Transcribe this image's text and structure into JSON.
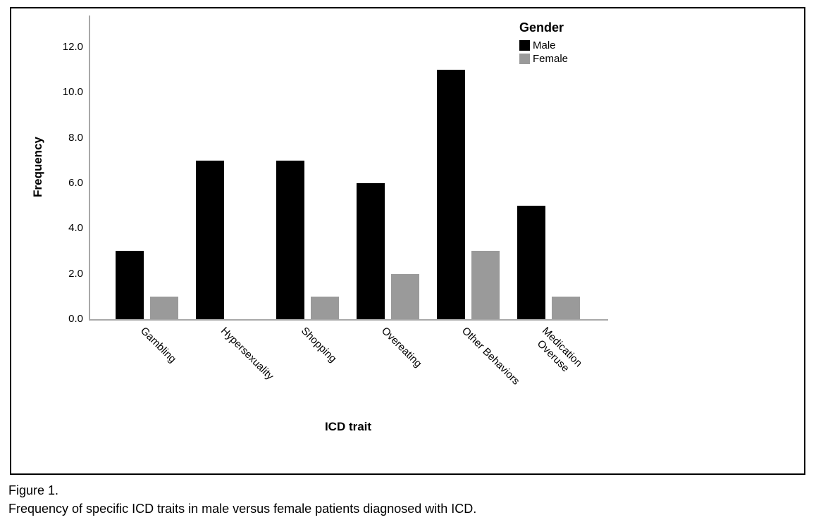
{
  "figure": {
    "caption_line1": "Figure 1.",
    "caption_line2": "Frequency of specific ICD traits in male versus female patients diagnosed with ICD."
  },
  "chart_data": {
    "type": "bar",
    "title": "",
    "categories": [
      "Gambling",
      "Hypersexuality",
      "Shopping",
      "Overeating",
      "Other Behaviors",
      "Medication\nOveruse"
    ],
    "series": [
      {
        "name": "Male",
        "color": "#000000",
        "values": [
          3,
          7,
          7,
          6,
          11,
          5
        ]
      },
      {
        "name": "Female",
        "color": "#9a9a9a",
        "values": [
          1,
          0,
          1,
          2,
          3,
          1
        ]
      }
    ],
    "xlabel": "ICD trait",
    "ylabel": "Frequency",
    "ylim": [
      0,
      13.4
    ],
    "yticks": [
      0,
      2,
      4,
      6,
      8,
      10,
      12
    ],
    "ytick_format": "one_decimal",
    "grid": false,
    "axis_color": "#a8a8a8",
    "legend": {
      "title": "Gender",
      "position": "top-right"
    }
  }
}
